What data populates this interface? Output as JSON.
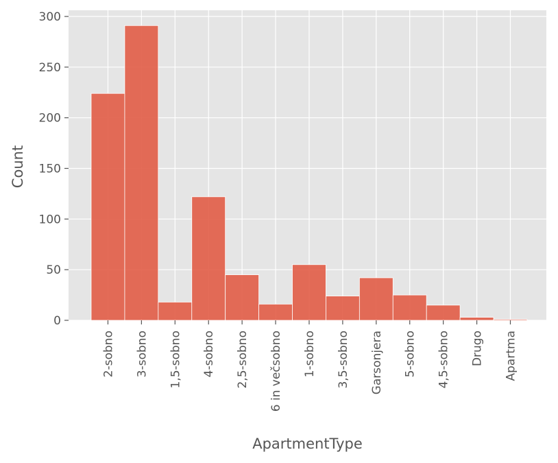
{
  "chart_data": {
    "type": "bar",
    "title": "",
    "xlabel": "ApartmentType",
    "ylabel": "Count",
    "categories": [
      "2-sobno",
      "3-sobno",
      "1,5-sobno",
      "4-sobno",
      "2,5-sobno",
      "6 in večsobno",
      "1-sobno",
      "3,5-sobno",
      "Garsonjera",
      "5-sobno",
      "4,5-sobno",
      "Drugo",
      "Apartma"
    ],
    "values": [
      224,
      291,
      18,
      122,
      45,
      16,
      55,
      24,
      42,
      25,
      15,
      3,
      1
    ],
    "ylim": [
      0,
      300
    ],
    "yticks": [
      0,
      50,
      100,
      150,
      200,
      250,
      300
    ],
    "grid": true,
    "style": "ggplot",
    "colors": {
      "bar": "#e2604a",
      "bar_edge": "#ffffff",
      "plot_bg": "#e5e5e5",
      "grid": "#ffffff",
      "text": "#555555"
    }
  }
}
